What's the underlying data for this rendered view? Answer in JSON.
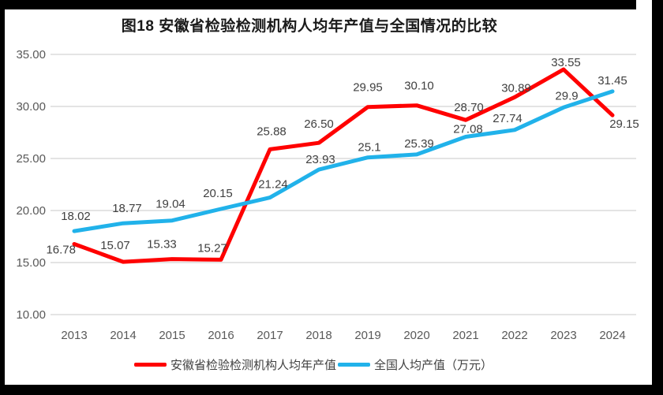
{
  "frame_color": "#000000",
  "chart_data": {
    "type": "line",
    "title": "图18 安徽省检验检测机构人均年产值与全国情况的比较",
    "categories": [
      "2013",
      "2014",
      "2015",
      "2016",
      "2017",
      "2018",
      "2019",
      "2020",
      "2021",
      "2022",
      "2023",
      "2024"
    ],
    "series": [
      {
        "name": "安徽省检验检测机构人均年产值",
        "color": "#FF0000",
        "values": [
          16.78,
          15.07,
          15.33,
          15.27,
          25.88,
          26.5,
          29.95,
          30.1,
          28.7,
          30.89,
          33.55,
          29.15
        ],
        "labels": [
          "16.78",
          "15.07",
          "15.33",
          "15.27",
          "25.88",
          "26.50",
          "29.95",
          "30.10",
          "28.70",
          "30.89",
          "33.55",
          "29.15"
        ]
      },
      {
        "name": "全国人均产值（万元）",
        "color": "#21B2EA",
        "values": [
          18.02,
          18.77,
          19.04,
          20.15,
          21.24,
          23.93,
          25.1,
          25.39,
          27.08,
          27.74,
          29.9,
          31.45
        ],
        "labels": [
          "18.02",
          "18.77",
          "19.04",
          "20.15",
          "21.24",
          "23.93",
          "25.1",
          "25.39",
          "27.08",
          "27.74",
          "29.9",
          "31.45"
        ]
      }
    ],
    "ylim": [
      10,
      35
    ],
    "yticks": [
      "35.00",
      "30.00",
      "25.00",
      "20.00",
      "15.00",
      "10.00"
    ],
    "xlabel": "",
    "ylabel": "",
    "grid": true,
    "legend_position": "bottom",
    "colors": {
      "axis_text": "#595959",
      "data_label_text": "#404040",
      "gridline": "#DCDCDC",
      "title_text": "#1A1A1A",
      "background": "#FFFFFF"
    }
  }
}
